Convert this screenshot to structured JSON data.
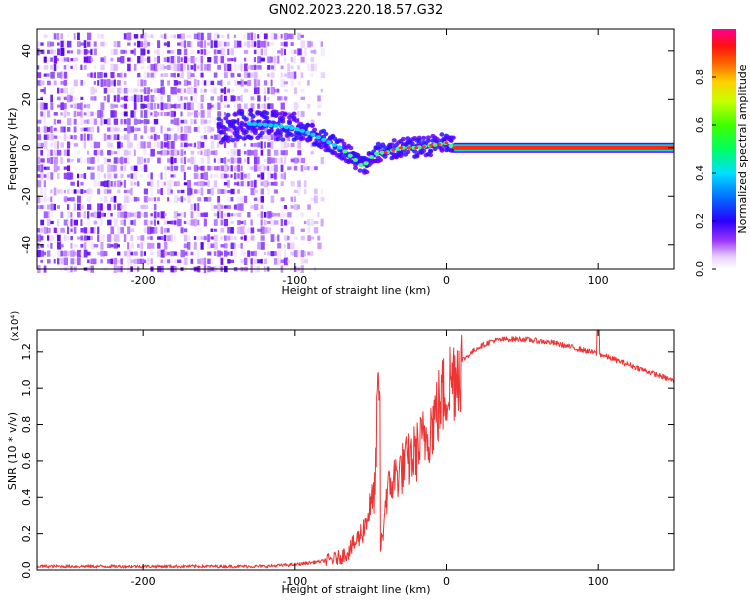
{
  "title": "GN02.2023.220.18.57.G32",
  "chart_data": [
    {
      "type": "heatmap",
      "xlabel": "Height of straight line (km)",
      "ylabel": "Frequency (Hz)",
      "xlim": [
        -270,
        150
      ],
      "ylim": [
        -50,
        49
      ],
      "xticks": [
        -200,
        -100,
        0,
        100
      ],
      "yticks": [
        -40,
        -20,
        0,
        20,
        40
      ],
      "xtick_labels": [
        "-200",
        "-100",
        "0",
        "100"
      ],
      "ytick_labels": [
        "-40",
        "-20",
        "0",
        "20",
        "40"
      ],
      "colorbar": {
        "label": "Normalized spectral amplitude",
        "range": [
          0,
          1
        ],
        "ticks": [
          0,
          0.2,
          0.4,
          0.6,
          0.8
        ],
        "tick_labels": [
          "0.0",
          "0.2",
          "0.4",
          "0.6",
          "0.8"
        ]
      },
      "ridge": {
        "x": [
          -150,
          -130,
          -110,
          -100,
          -90,
          -80,
          -70,
          -60,
          -55,
          -50,
          -45,
          -40,
          -30,
          -20,
          -10,
          0,
          5,
          10,
          50,
          100,
          150
        ],
        "y": [
          8,
          10,
          9,
          8,
          6,
          3,
          0,
          -5,
          -8,
          -4,
          -2,
          -2,
          0,
          0,
          1,
          2,
          0,
          0,
          0,
          0,
          0
        ]
      },
      "colors": [
        "#ffffff",
        "#f3e6ff",
        "#d9b3ff",
        "#b366ff",
        "#7a00ff",
        "#2020ff",
        "#00c0ff",
        "#00ff90",
        "#60ff00",
        "#ffff00",
        "#ffa000",
        "#ff2000",
        "#ff0090"
      ]
    },
    {
      "type": "line",
      "xlabel": "Height of straight line (km)",
      "ylabel": "SNR (10 * v/v)",
      "yunit": "(x10⁴)",
      "xlim": [
        -270,
        150
      ],
      "ylim": [
        0,
        1.32
      ],
      "xticks": [
        -200,
        -100,
        0,
        100
      ],
      "yticks": [
        0,
        0.2,
        0.4,
        0.6,
        0.8,
        1.0,
        1.2
      ],
      "xtick_labels": [
        "-200",
        "-100",
        "0",
        "100"
      ],
      "ytick_labels": [
        "0.0",
        "0.2",
        "0.4",
        "0.6",
        "0.8",
        "1.0",
        "1.2"
      ],
      "color": "#ee3333",
      "series": [
        {
          "x": [
            -270,
            -230,
            -200,
            -150,
            -120,
            -100,
            -90,
            -80,
            -70,
            -65,
            -60,
            -55,
            -52,
            -48,
            -46,
            -44,
            -42,
            -40,
            -35,
            -30,
            -25,
            -20,
            -15,
            -10,
            -5,
            0,
            10,
            20,
            30,
            40,
            50,
            60,
            70,
            80,
            90,
            100,
            110,
            120,
            130,
            140,
            150
          ],
          "y": [
            0.02,
            0.02,
            0.02,
            0.02,
            0.02,
            0.03,
            0.04,
            0.05,
            0.07,
            0.1,
            0.15,
            0.22,
            0.3,
            0.4,
            0.6,
            0.1,
            0.2,
            0.4,
            0.5,
            0.55,
            0.6,
            0.65,
            0.72,
            0.8,
            0.9,
            1.0,
            1.15,
            1.22,
            1.26,
            1.27,
            1.27,
            1.26,
            1.25,
            1.23,
            1.21,
            1.19,
            1.16,
            1.13,
            1.1,
            1.07,
            1.04
          ]
        }
      ]
    }
  ]
}
